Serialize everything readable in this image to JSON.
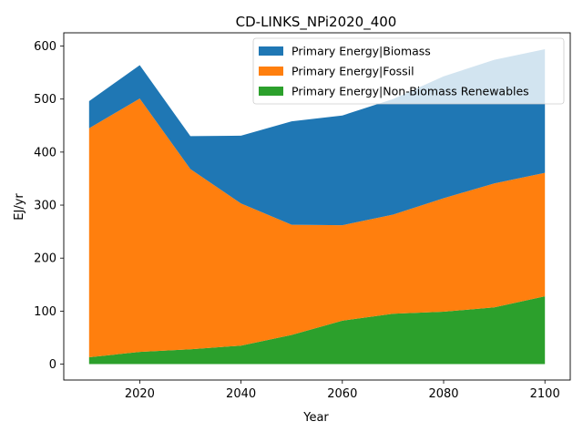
{
  "chart_data": {
    "type": "area",
    "stacked": true,
    "title": "CD-LINKS_NPi2020_400",
    "xlabel": "Year",
    "ylabel": "EJ/yr",
    "x": [
      2010,
      2020,
      2030,
      2040,
      2050,
      2060,
      2070,
      2080,
      2090,
      2100
    ],
    "xlim": [
      2005,
      2105
    ],
    "ylim": [
      -30,
      625
    ],
    "xticks": [
      2020,
      2040,
      2060,
      2080,
      2100
    ],
    "yticks": [
      0,
      100,
      200,
      300,
      400,
      500,
      600
    ],
    "grid": false,
    "legend_position": "top-right",
    "series": [
      {
        "name": "Primary Energy|Non-Biomass Renewables",
        "color": "#2ca02c",
        "values": [
          13,
          23,
          28,
          35,
          55,
          82,
          95,
          99,
          107,
          128
        ]
      },
      {
        "name": "Primary Energy|Fossil",
        "color": "#ff7f0e",
        "values": [
          432,
          478,
          340,
          268,
          208,
          180,
          187,
          214,
          234,
          233
        ]
      },
      {
        "name": "Primary Energy|Biomass",
        "color": "#1f77b4",
        "values": [
          51,
          63,
          62,
          128,
          195,
          207,
          218,
          230,
          233,
          233
        ]
      }
    ],
    "legend_order": [
      "Primary Energy|Biomass",
      "Primary Energy|Fossil",
      "Primary Energy|Non-Biomass Renewables"
    ]
  }
}
